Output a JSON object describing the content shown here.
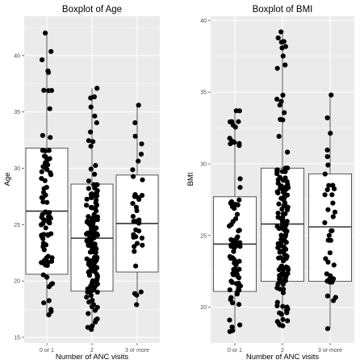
{
  "chart_data": [
    {
      "type": "box",
      "title": "Boxplot of Age",
      "xlabel": "Number of ANC visits",
      "ylabel": "Age",
      "categories": [
        "0 or 1",
        "2",
        "3 or more"
      ],
      "ylim": [
        14.5,
        43.5
      ],
      "yticks": [
        15,
        20,
        25,
        30,
        35,
        40
      ],
      "grid": true,
      "boxes": [
        {
          "category": "0 or 1",
          "min": 17.0,
          "q1": 20.6,
          "median": 26.2,
          "q3": 31.8,
          "max": 42.0,
          "n": 82
        },
        {
          "category": "2",
          "min": 15.7,
          "q1": 19.1,
          "median": 23.8,
          "q3": 28.6,
          "max": 37.1,
          "n": 150
        },
        {
          "category": "3 or more",
          "min": 17.9,
          "q1": 20.8,
          "median": 25.1,
          "q3": 29.4,
          "max": 35.6,
          "n": 38
        }
      ]
    },
    {
      "type": "box",
      "title": "Boxplot of BMI",
      "xlabel": "Number of ANC visits",
      "ylabel": "BMI",
      "categories": [
        "0 or 1",
        "2",
        "3 or more"
      ],
      "ylim": [
        17.5,
        40.3
      ],
      "yticks": [
        20,
        25,
        30,
        35,
        40
      ],
      "grid": true,
      "boxes": [
        {
          "category": "0 or 1",
          "min": 18.3,
          "q1": 21.1,
          "median": 24.4,
          "q3": 27.7,
          "max": 33.7,
          "n": 82
        },
        {
          "category": "2",
          "min": 18.7,
          "q1": 21.8,
          "median": 25.8,
          "q3": 29.7,
          "max": 39.2,
          "n": 150
        },
        {
          "category": "3 or more",
          "min": 18.5,
          "q1": 21.8,
          "median": 25.6,
          "q3": 29.3,
          "max": 34.8,
          "n": 38
        }
      ]
    }
  ]
}
